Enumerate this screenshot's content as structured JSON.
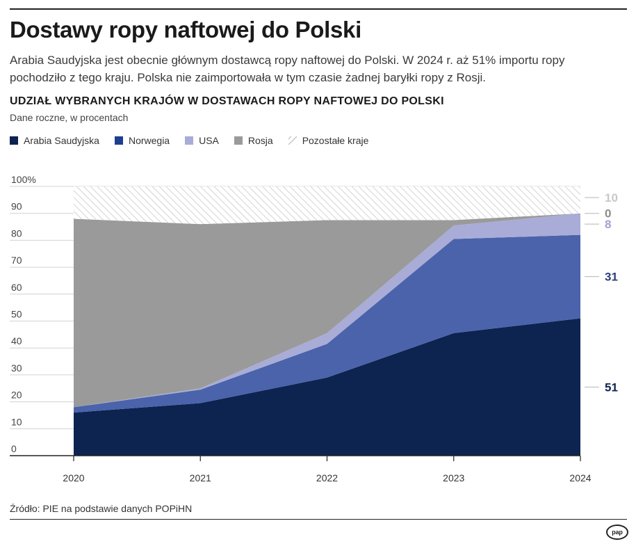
{
  "header": {
    "title": "Dostawy ropy naftowej do Polski",
    "subtitle": "Arabia Saudyjska jest obecnie głównym dostawcą ropy naftowej do Polski. W 2024 r. aż 51% importu ropy pochodziło z tego kraju. Polska nie zaimportowała w tym czasie żadnej baryłki ropy z Rosji."
  },
  "chart_data": {
    "type": "area",
    "stacked": true,
    "title": "UDZIAŁ WYBRANYCH KRAJÓW W DOSTAWACH ROPY NAFTOWEJ DO POLSKI",
    "subtitle": "Dane roczne, w procentach",
    "x": [
      "2020",
      "2021",
      "2022",
      "2023",
      "2024"
    ],
    "ylim": [
      0,
      100
    ],
    "yticks": [
      {
        "value": 0,
        "label": "0"
      },
      {
        "value": 10,
        "label": "10"
      },
      {
        "value": 20,
        "label": "20"
      },
      {
        "value": 30,
        "label": "30"
      },
      {
        "value": 40,
        "label": "40"
      },
      {
        "value": 50,
        "label": "50"
      },
      {
        "value": 60,
        "label": "60"
      },
      {
        "value": 70,
        "label": "70"
      },
      {
        "value": 80,
        "label": "80"
      },
      {
        "value": 90,
        "label": "90"
      },
      {
        "value": 100,
        "label": "100%"
      }
    ],
    "series": [
      {
        "name": "Arabia Saudyjska",
        "color": "#0d2350",
        "values": [
          16,
          19.5,
          29,
          45.5,
          51
        ]
      },
      {
        "name": "Norwegia",
        "color": "#4a63ab",
        "values": [
          2,
          5,
          12.5,
          35,
          31
        ]
      },
      {
        "name": "USA",
        "color": "#a9acd6",
        "values": [
          0,
          0.5,
          4,
          5,
          8
        ]
      },
      {
        "name": "Rosja",
        "color": "#9a9a9a",
        "values": [
          70,
          61,
          42,
          2,
          0
        ]
      },
      {
        "name": "Pozostałe kraje",
        "color": "hatch",
        "values": [
          12,
          14,
          12.5,
          12.5,
          10
        ]
      }
    ],
    "end_labels": [
      {
        "series": "Arabia Saudyjska",
        "label": "51",
        "color": "#0d2350"
      },
      {
        "series": "Norwegia",
        "label": "31",
        "color": "#2d3f78"
      },
      {
        "series": "USA",
        "label": "8",
        "color": "#9ea2d0"
      },
      {
        "series": "Rosja",
        "label": "0",
        "color": "#8c8c8c"
      },
      {
        "series": "Pozostałe kraje",
        "label": "10",
        "color": "#c8c8c8"
      }
    ],
    "grid": true,
    "legend_position": "top-left"
  },
  "footer": {
    "source": "Źródło: PIE na podstawie danych POPiHN",
    "logo_text": "pap"
  }
}
